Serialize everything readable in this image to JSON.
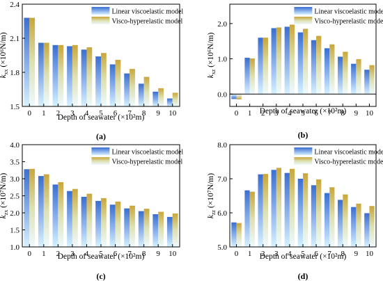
{
  "chart_data": [
    {
      "panel": "(a)",
      "type": "bar",
      "categories": [
        "0",
        "1",
        "2",
        "3",
        "4",
        "5",
        "6",
        "7",
        "8",
        "9",
        "10"
      ],
      "series": [
        {
          "name": "Linear viscoelastic model",
          "values": [
            2.28,
            2.06,
            2.04,
            2.03,
            2.0,
            1.94,
            1.87,
            1.79,
            1.7,
            1.63,
            1.57
          ]
        },
        {
          "name": "Visco-hyperelastic model",
          "values": [
            2.28,
            2.06,
            2.04,
            2.04,
            2.02,
            1.97,
            1.91,
            1.83,
            1.76,
            1.66,
            1.62
          ]
        }
      ],
      "ylim": [
        1.5,
        2.4
      ],
      "yticks": [
        "1.5",
        "1.8",
        "2.1",
        "2.4"
      ],
      "ytick_values": [
        1.5,
        1.8,
        2.1,
        2.4
      ],
      "ylabel": "k_xx (×10⁶N/m)",
      "ylabel_main": "k",
      "ylabel_sub": "xx",
      "ylabel_rest": " (×10⁶N/m)",
      "xlabel": "Depth of seawater (×10²m)",
      "legend_position": "top-right",
      "grid": false
    },
    {
      "panel": "(b)",
      "type": "bar",
      "categories": [
        "0",
        "1",
        "2",
        "3",
        "4",
        "5",
        "6",
        "7",
        "8",
        "9",
        "10"
      ],
      "series": [
        {
          "name": "Linear viscoelastic model",
          "values": [
            -0.14,
            1.03,
            1.6,
            1.87,
            1.91,
            1.75,
            1.53,
            1.3,
            1.06,
            0.86,
            0.69
          ]
        },
        {
          "name": "Visco-hyperelastic model",
          "values": [
            -0.15,
            1.01,
            1.6,
            1.89,
            1.97,
            1.85,
            1.65,
            1.41,
            1.2,
            0.99,
            0.82
          ]
        }
      ],
      "ylim": [
        -0.35,
        2.55
      ],
      "yticks": [
        "0.0",
        "1.0",
        "2.0"
      ],
      "ytick_values": [
        0.0,
        1.0,
        2.0
      ],
      "ylabel": "k_xz (×10⁶N/m)",
      "ylabel_main": "k",
      "ylabel_sub": "xz",
      "ylabel_rest": " (×10⁶N/m)",
      "xlabel": "Depth of seawater (×10²m)",
      "legend_position": "top-right",
      "grid": false
    },
    {
      "panel": "(c)",
      "type": "bar",
      "categories": [
        "0",
        "1",
        "2",
        "3",
        "4",
        "5",
        "6",
        "7",
        "8",
        "9",
        "10"
      ],
      "series": [
        {
          "name": "Linear viscoelastic model",
          "values": [
            3.28,
            3.08,
            2.83,
            2.64,
            2.47,
            2.35,
            2.24,
            2.13,
            2.05,
            1.96,
            1.88
          ]
        },
        {
          "name": "Visco-hyperelastic model",
          "values": [
            3.29,
            3.13,
            2.9,
            2.7,
            2.56,
            2.43,
            2.33,
            2.21,
            2.12,
            2.03,
            1.98
          ]
        }
      ],
      "ylim": [
        1.0,
        4.0
      ],
      "yticks": [
        "1.0",
        "1.5",
        "2.0",
        "2.5",
        "3.0",
        "3.5",
        "4.0"
      ],
      "ytick_values": [
        1.0,
        1.5,
        2.0,
        2.5,
        3.0,
        3.5,
        4.0
      ],
      "ylabel": "k_zx (×10⁷N/m)",
      "ylabel_main": "k",
      "ylabel_sub": "zx",
      "ylabel_rest": " (×10⁷N/m)",
      "xlabel": "Depth of seawater (×10²m)",
      "legend_position": "top-right",
      "grid": false
    },
    {
      "panel": "(d)",
      "type": "bar",
      "categories": [
        "0",
        "1",
        "2",
        "3",
        "4",
        "5",
        "6",
        "7",
        "8",
        "9",
        "10"
      ],
      "series": [
        {
          "name": "Linear viscoelastic model",
          "values": [
            5.72,
            6.66,
            7.13,
            7.26,
            7.17,
            7.0,
            6.81,
            6.58,
            6.38,
            6.17,
            5.99
          ]
        },
        {
          "name": "Visco-hyperelastic model",
          "values": [
            5.7,
            6.62,
            7.14,
            7.32,
            7.29,
            7.16,
            6.98,
            6.75,
            6.54,
            6.27,
            6.2
          ]
        }
      ],
      "ylim": [
        5.0,
        8.0
      ],
      "yticks": [
        "5.0",
        "6.0",
        "7.0",
        "8.0"
      ],
      "ytick_values": [
        5.0,
        6.0,
        7.0,
        8.0
      ],
      "ylabel": "k_zz (×10⁷N/m)",
      "ylabel_main": "k",
      "ylabel_sub": "zz",
      "ylabel_rest": " (×10⁷N/m)",
      "xlabel": "Depth of seawater (×10²m)",
      "legend_position": "top-right",
      "grid": false
    }
  ],
  "colors": {
    "linear_top": "#3a6fd0",
    "linear_bottom": "#cfeeff",
    "hyper_top": "#c9a63a",
    "hyper_bottom": "#eefaff"
  }
}
